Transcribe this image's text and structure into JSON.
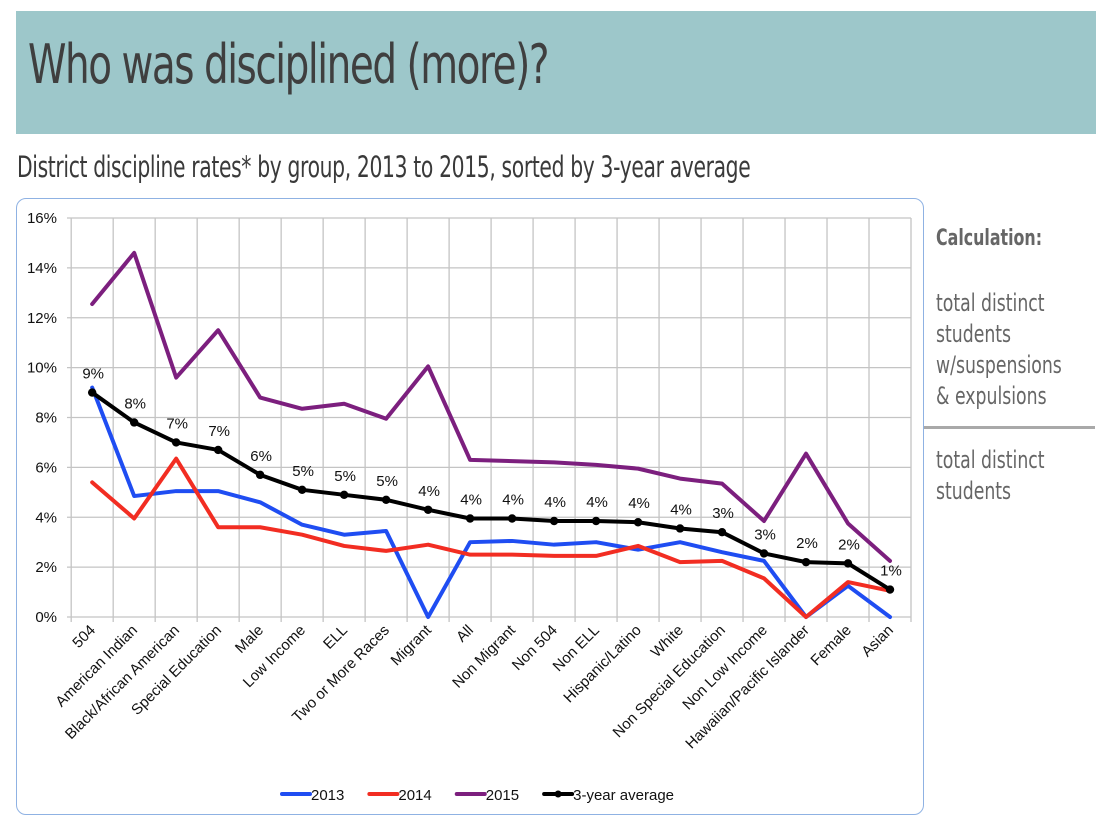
{
  "header": {
    "title": "Who was disciplined (more)?",
    "background_color": "#9dc7ca"
  },
  "subtitle": "District discipline rates* by group, 2013 to 2015, sorted by 3-year average",
  "sidebar": {
    "title": "Calculation:",
    "numerator_lines": [
      "total distinct",
      "students",
      "w/suspensions",
      "& expulsions"
    ],
    "denominator_lines": [
      "total distinct",
      "students"
    ]
  },
  "chart_data": {
    "type": "line",
    "title": "District discipline rates* by group, 2013 to 2015, sorted by 3-year average",
    "xlabel": "",
    "ylabel": "",
    "ylim": [
      0,
      16
    ],
    "yticks": [
      0,
      2,
      4,
      6,
      8,
      10,
      12,
      14,
      16
    ],
    "ytick_labels": [
      "0%",
      "2%",
      "4%",
      "6%",
      "8%",
      "10%",
      "12%",
      "14%",
      "16%"
    ],
    "grid": true,
    "legend_position": "bottom",
    "categories": [
      "504",
      "American Indian",
      "Black/African American",
      "Special Education",
      "Male",
      "Low Income",
      "ELL",
      "Two or More Races",
      "Migrant",
      "All",
      "Non Migrant",
      "Non 504",
      "Non ELL",
      "Hispanic/Latino",
      "White",
      "Non Special Education",
      "Non Low Income",
      "Hawaiian/Pacific Islander",
      "Female",
      "Asian"
    ],
    "series": [
      {
        "name": "2013",
        "color": "#1f4df2",
        "markers": false,
        "values": [
          9.2,
          4.85,
          5.05,
          5.05,
          4.6,
          3.7,
          3.3,
          3.45,
          0.0,
          3.0,
          3.05,
          2.9,
          3.0,
          2.7,
          3.0,
          2.6,
          2.25,
          0.0,
          1.25,
          0.0
        ]
      },
      {
        "name": "2014",
        "color": "#f22d22",
        "markers": false,
        "values": [
          5.4,
          3.95,
          6.35,
          3.6,
          3.6,
          3.3,
          2.85,
          2.65,
          2.9,
          2.5,
          2.5,
          2.45,
          2.45,
          2.85,
          2.2,
          2.25,
          1.55,
          0.0,
          1.4,
          1.05
        ]
      },
      {
        "name": "2015",
        "color": "#7c1f7e",
        "markers": false,
        "values": [
          12.55,
          14.6,
          9.6,
          11.5,
          8.8,
          8.35,
          8.55,
          7.95,
          10.05,
          6.3,
          6.25,
          6.2,
          6.1,
          5.95,
          5.55,
          5.35,
          3.85,
          6.55,
          3.75,
          2.25
        ]
      },
      {
        "name": "3-year average",
        "color": "#000000",
        "markers": true,
        "values": [
          9.0,
          7.8,
          7.0,
          6.7,
          5.7,
          5.1,
          4.9,
          4.7,
          4.3,
          3.95,
          3.95,
          3.85,
          3.85,
          3.8,
          3.55,
          3.4,
          2.55,
          2.2,
          2.15,
          1.1
        ],
        "data_labels": [
          "9%",
          "8%",
          "7%",
          "7%",
          "6%",
          "5%",
          "5%",
          "5%",
          "4%",
          "4%",
          "4%",
          "4%",
          "4%",
          "4%",
          "4%",
          "3%",
          "3%",
          "2%",
          "2%",
          "1%"
        ]
      }
    ]
  }
}
